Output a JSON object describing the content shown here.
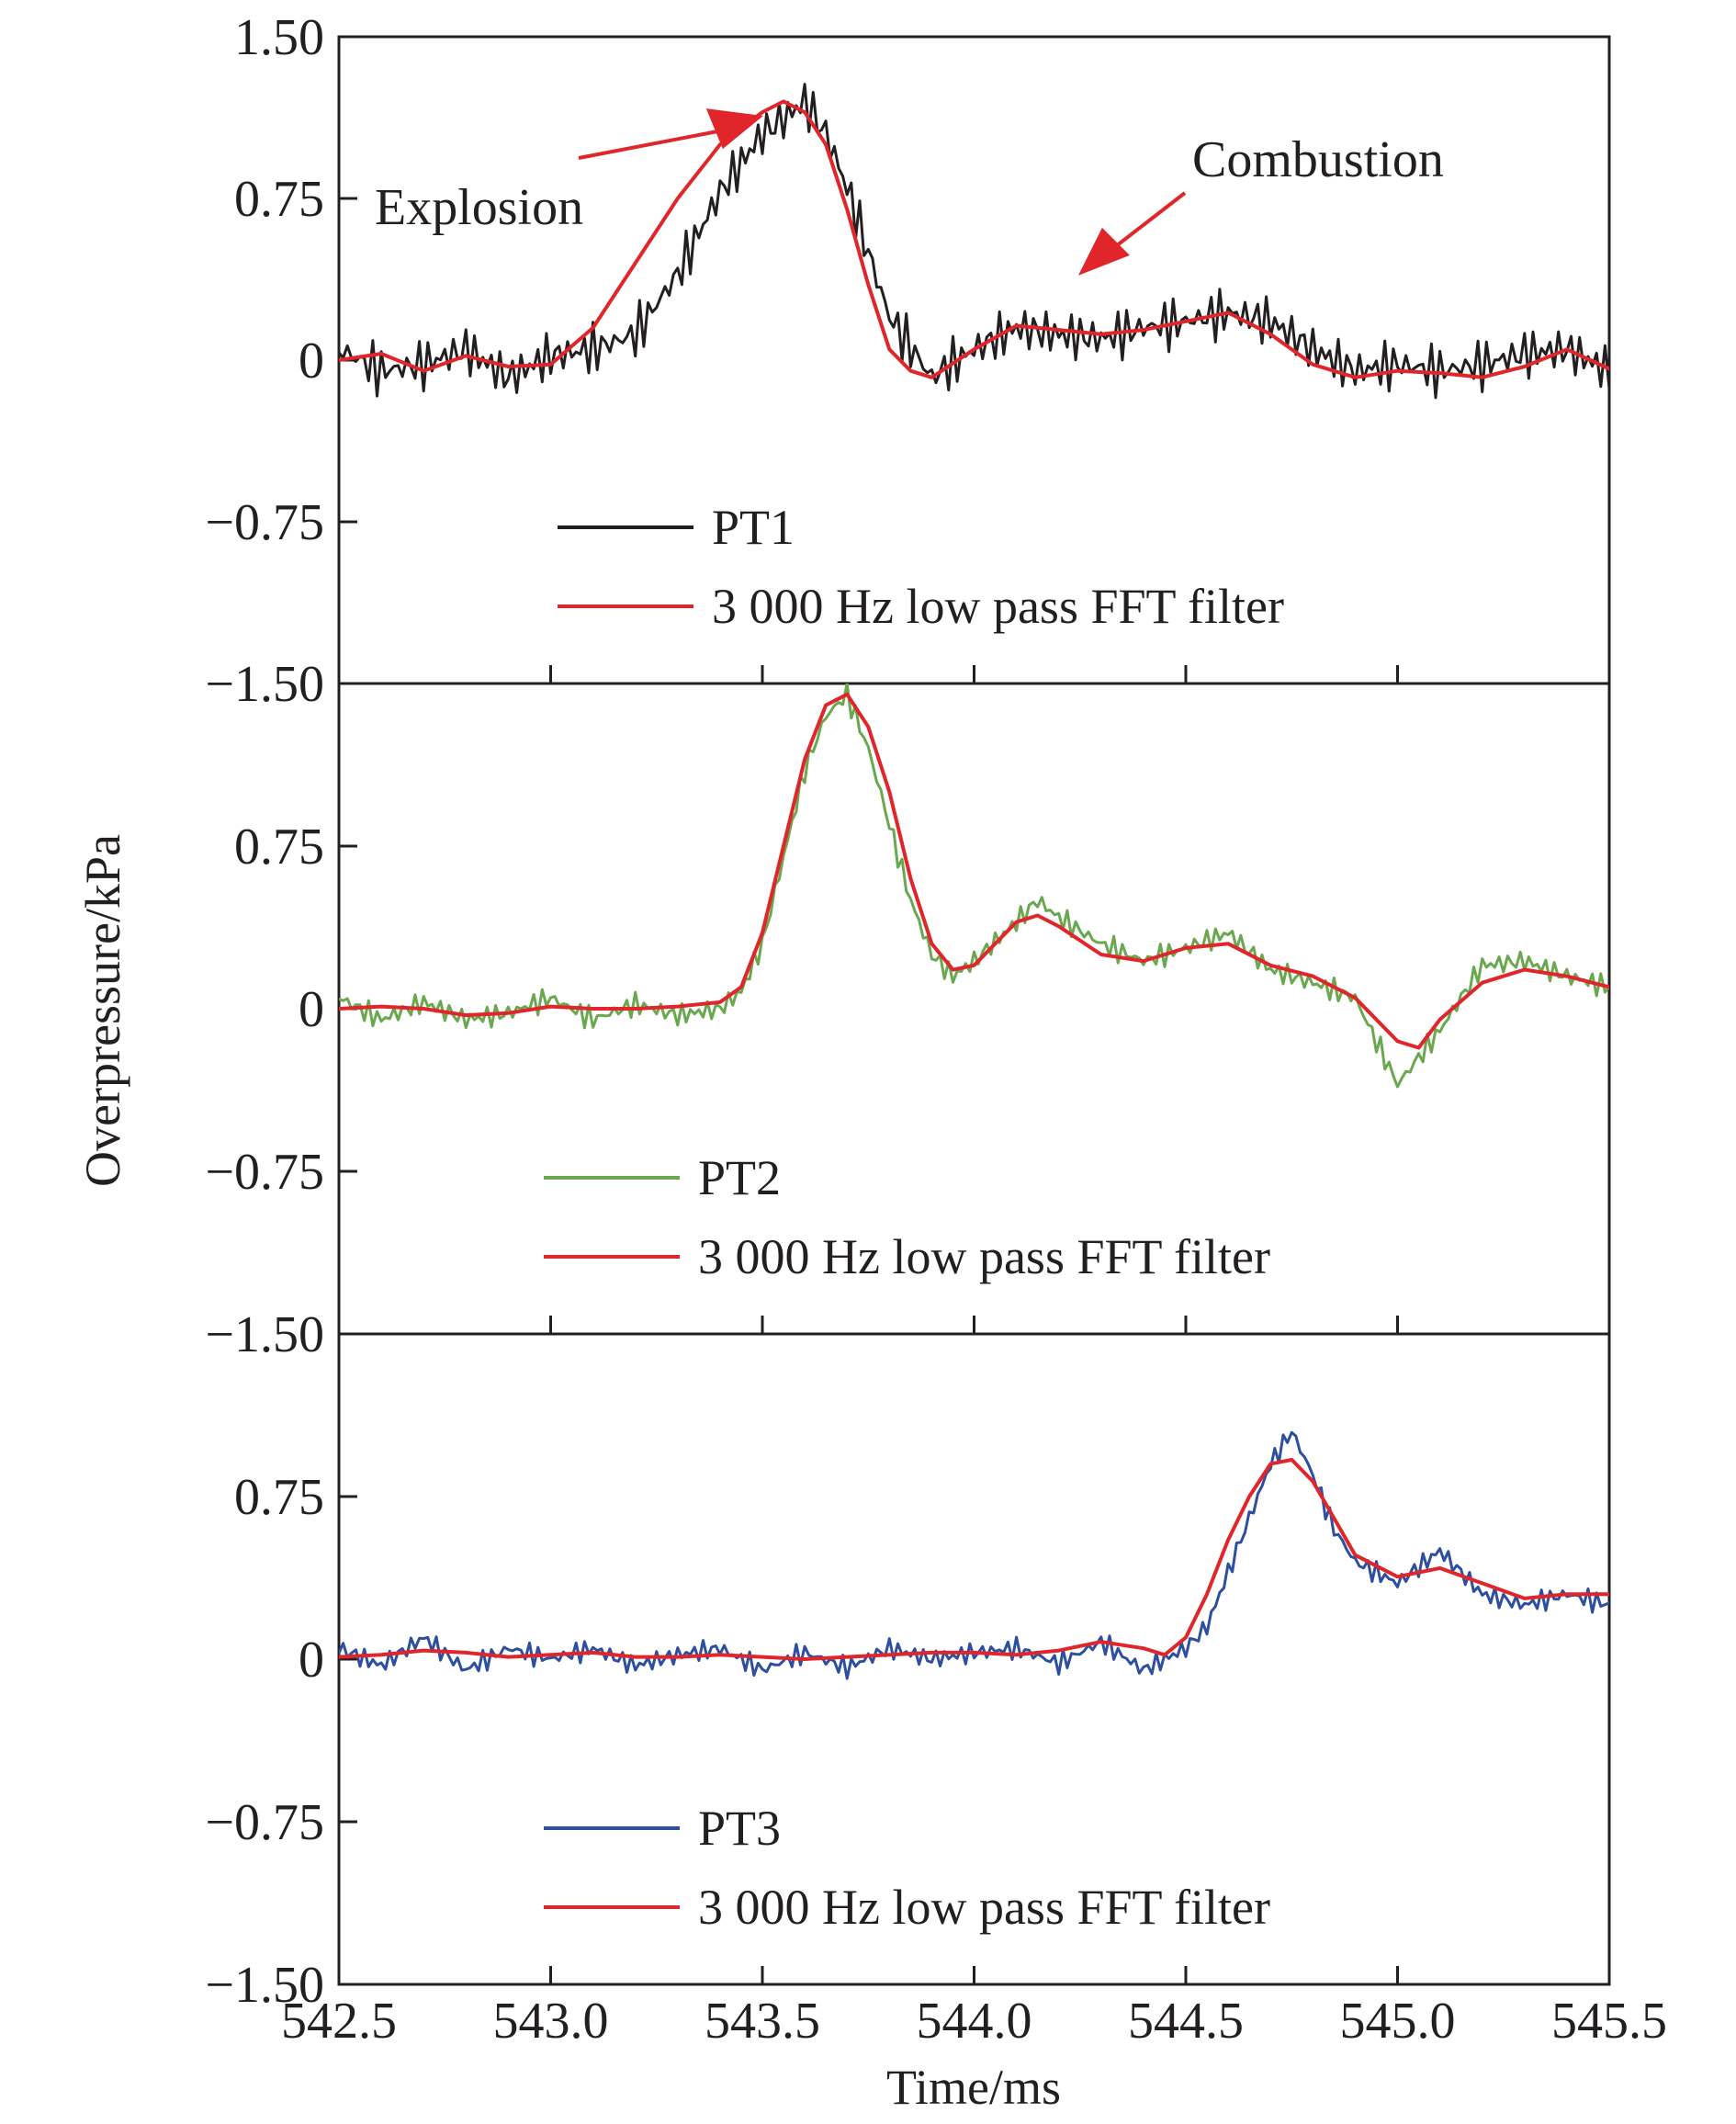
{
  "chart_data": {
    "type": "line",
    "xlabel": "Time/ms",
    "ylabel": "Overpressure/kPa",
    "xlim": [
      542.5,
      545.5
    ],
    "x_ticks": [
      "542.5",
      "543.0",
      "543.5",
      "544.0",
      "544.5",
      "545.0",
      "545.5"
    ],
    "y_ticks": [
      "1.50",
      "0.75",
      "0",
      "−0.75",
      "−1.50"
    ],
    "ylim": [
      -1.5,
      1.5
    ],
    "grid": false,
    "legend_position": "bottom-left",
    "panels": [
      {
        "series": [
          {
            "name": "PT1",
            "color": "#231f20",
            "x": [
              542.5,
              542.6,
              542.7,
              542.8,
              542.9,
              543.0,
              543.1,
              543.2,
              543.3,
              543.4,
              543.5,
              543.55,
              543.6,
              543.65,
              543.7,
              543.8,
              543.9,
              544.0,
              544.1,
              544.2,
              544.3,
              544.4,
              544.5,
              544.6,
              544.7,
              544.8,
              544.9,
              545.0,
              545.1,
              545.2,
              545.3,
              545.4,
              545.5
            ],
            "y": [
              0.05,
              -0.05,
              -0.02,
              0.05,
              -0.08,
              0.02,
              0.05,
              0.12,
              0.4,
              0.78,
              1.05,
              1.12,
              1.2,
              1.05,
              0.8,
              0.2,
              -0.08,
              0.05,
              0.15,
              0.12,
              0.1,
              0.15,
              0.18,
              0.22,
              0.18,
              0.05,
              -0.05,
              -0.02,
              -0.05,
              -0.02,
              0.03,
              0.05,
              -0.05
            ]
          },
          {
            "name": "3 000 Hz low pass FFT filter",
            "color": "#e0262b",
            "x": [
              542.5,
              542.6,
              542.7,
              542.8,
              542.9,
              543.0,
              543.1,
              543.2,
              543.3,
              543.4,
              543.5,
              543.55,
              543.6,
              543.65,
              543.7,
              543.75,
              543.8,
              543.85,
              543.9,
              544.0,
              544.1,
              544.2,
              544.3,
              544.4,
              544.5,
              544.6,
              544.7,
              544.8,
              544.9,
              545.0,
              545.1,
              545.2,
              545.3,
              545.4,
              545.5
            ],
            "y": [
              0.0,
              0.03,
              -0.05,
              0.02,
              -0.03,
              -0.02,
              0.15,
              0.45,
              0.75,
              1.0,
              1.15,
              1.2,
              1.15,
              1.0,
              0.7,
              0.35,
              0.05,
              -0.05,
              -0.08,
              0.05,
              0.16,
              0.14,
              0.12,
              0.14,
              0.18,
              0.22,
              0.12,
              -0.02,
              -0.08,
              -0.05,
              -0.06,
              -0.08,
              -0.03,
              0.05,
              -0.04
            ]
          }
        ],
        "annotations": [
          {
            "text": "Explosion",
            "x": 543.35,
            "y": 1.15
          },
          {
            "text": "Combustion",
            "x": 544.22,
            "y": 0.35
          }
        ]
      },
      {
        "series": [
          {
            "name": "PT2",
            "color": "#6aa84f",
            "x": [
              542.5,
              542.6,
              542.7,
              542.8,
              542.9,
              543.0,
              543.1,
              543.2,
              543.3,
              543.4,
              543.45,
              543.5,
              543.55,
              543.6,
              543.65,
              543.7,
              543.75,
              543.8,
              543.85,
              543.9,
              543.95,
              544.0,
              544.1,
              544.15,
              544.2,
              544.3,
              544.4,
              544.5,
              544.6,
              544.7,
              544.8,
              544.9,
              545.0,
              545.1,
              545.2,
              545.3,
              545.4,
              545.5
            ],
            "y": [
              0.05,
              -0.05,
              0.03,
              -0.05,
              -0.02,
              0.05,
              -0.05,
              0.02,
              -0.03,
              0.0,
              0.08,
              0.3,
              0.7,
              1.1,
              1.35,
              1.45,
              1.2,
              0.85,
              0.5,
              0.25,
              0.15,
              0.22,
              0.4,
              0.5,
              0.42,
              0.3,
              0.22,
              0.28,
              0.35,
              0.18,
              0.12,
              0.05,
              -0.35,
              -0.1,
              0.2,
              0.22,
              0.15,
              0.1
            ]
          },
          {
            "name": "3 000 Hz low pass FFT filter",
            "color": "#e0262b",
            "x": [
              542.5,
              542.6,
              542.7,
              542.8,
              542.9,
              543.0,
              543.1,
              543.2,
              543.3,
              543.4,
              543.45,
              543.5,
              543.55,
              543.6,
              543.65,
              543.7,
              543.75,
              543.8,
              543.85,
              543.9,
              543.95,
              544.0,
              544.05,
              544.1,
              544.15,
              544.2,
              544.3,
              544.4,
              544.5,
              544.6,
              544.7,
              544.8,
              544.9,
              545.0,
              545.05,
              545.1,
              545.2,
              545.3,
              545.4,
              545.5
            ],
            "y": [
              0.0,
              0.01,
              0.0,
              -0.03,
              -0.02,
              0.01,
              0.0,
              0.0,
              0.01,
              0.03,
              0.1,
              0.35,
              0.75,
              1.15,
              1.4,
              1.45,
              1.3,
              1.0,
              0.6,
              0.3,
              0.18,
              0.2,
              0.3,
              0.4,
              0.43,
              0.38,
              0.25,
              0.22,
              0.28,
              0.3,
              0.2,
              0.15,
              0.05,
              -0.15,
              -0.18,
              -0.05,
              0.12,
              0.18,
              0.15,
              0.1
            ]
          }
        ]
      },
      {
        "series": [
          {
            "name": "PT3",
            "color": "#2e4fa0",
            "x": [
              542.5,
              542.6,
              542.7,
              542.8,
              542.9,
              543.0,
              543.1,
              543.2,
              543.3,
              543.4,
              543.5,
              543.6,
              543.7,
              543.8,
              543.9,
              544.0,
              544.1,
              544.2,
              544.3,
              544.4,
              544.5,
              544.55,
              544.6,
              544.65,
              544.7,
              544.75,
              544.8,
              544.85,
              544.9,
              545.0,
              545.1,
              545.2,
              545.3,
              545.4,
              545.5
            ],
            "y": [
              0.05,
              -0.03,
              0.1,
              -0.05,
              0.05,
              0.0,
              0.05,
              -0.03,
              0.02,
              0.05,
              -0.05,
              0.03,
              -0.04,
              0.05,
              0.0,
              0.03,
              0.05,
              -0.02,
              0.08,
              -0.05,
              0.05,
              0.15,
              0.4,
              0.65,
              0.9,
              1.05,
              0.85,
              0.6,
              0.45,
              0.35,
              0.5,
              0.3,
              0.25,
              0.3,
              0.25
            ]
          },
          {
            "name": "3 000 Hz low pass FFT filter",
            "color": "#e0262b",
            "x": [
              542.5,
              542.6,
              542.7,
              542.8,
              542.9,
              543.0,
              543.1,
              543.2,
              543.3,
              543.4,
              543.5,
              543.6,
              543.7,
              543.8,
              543.9,
              544.0,
              544.1,
              544.2,
              544.3,
              544.4,
              544.45,
              544.5,
              544.55,
              544.6,
              544.65,
              544.7,
              544.75,
              544.8,
              544.85,
              544.9,
              545.0,
              545.1,
              545.2,
              545.3,
              545.4,
              545.5
            ],
            "y": [
              0.01,
              0.02,
              0.04,
              0.03,
              0.01,
              0.02,
              0.03,
              0.01,
              0.01,
              0.02,
              0.01,
              0.0,
              0.01,
              0.02,
              0.03,
              0.03,
              0.02,
              0.04,
              0.08,
              0.05,
              0.02,
              0.1,
              0.3,
              0.55,
              0.75,
              0.9,
              0.92,
              0.82,
              0.65,
              0.48,
              0.38,
              0.42,
              0.35,
              0.28,
              0.3,
              0.3
            ]
          }
        ]
      }
    ]
  }
}
